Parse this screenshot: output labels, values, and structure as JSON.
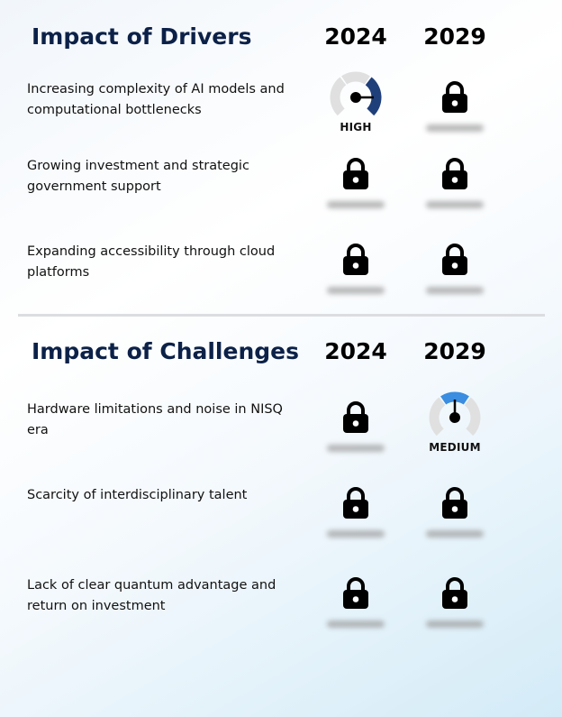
{
  "drivers": {
    "title": "Impact of Drivers",
    "years": [
      "2024",
      "2029"
    ],
    "rows": [
      {
        "label": "Increasing complexity of AI models and computational bottlenecks",
        "cells": [
          {
            "type": "gauge",
            "level": "HIGH"
          },
          {
            "type": "locked"
          }
        ]
      },
      {
        "label": "Growing investment and strategic government support",
        "cells": [
          {
            "type": "locked"
          },
          {
            "type": "locked"
          }
        ]
      },
      {
        "label": "Expanding accessibility through cloud platforms",
        "cells": [
          {
            "type": "locked"
          },
          {
            "type": "locked"
          }
        ]
      }
    ]
  },
  "challenges": {
    "title": "Impact of Challenges",
    "years": [
      "2024",
      "2029"
    ],
    "rows": [
      {
        "label": "Hardware limitations and noise in NISQ era",
        "cells": [
          {
            "type": "locked"
          },
          {
            "type": "gauge",
            "level": "MEDIUM"
          }
        ]
      },
      {
        "label": "Scarcity of interdisciplinary talent",
        "cells": [
          {
            "type": "locked"
          },
          {
            "type": "locked"
          }
        ]
      },
      {
        "label": "Lack of clear quantum advantage and return on investment",
        "cells": [
          {
            "type": "locked"
          },
          {
            "type": "locked"
          }
        ]
      }
    ]
  },
  "colors": {
    "title": "#0c2148",
    "high": "#1f3f7a",
    "medium": "#3a8de0",
    "gauge_track": "#e0e0e0"
  },
  "icons": {
    "locked": "lock-icon",
    "gauge": "gauge-icon"
  }
}
